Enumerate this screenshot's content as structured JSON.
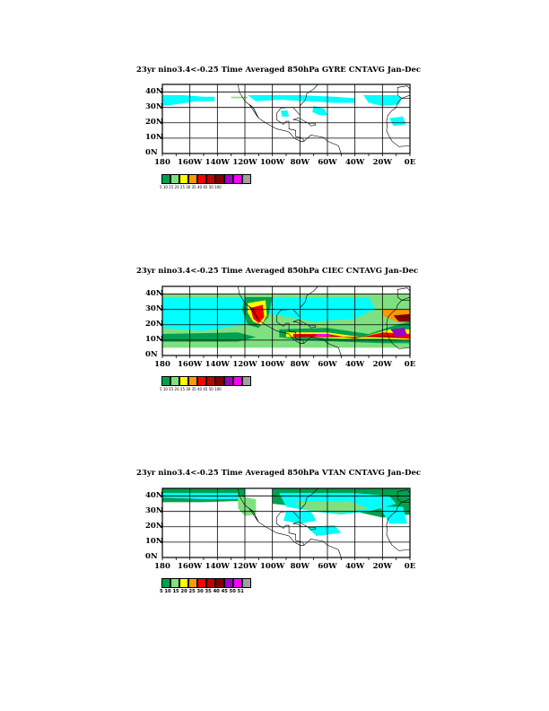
{
  "colors": {
    "cyan": "#00ffff",
    "lightgreen": "#7fe07f",
    "green": "#00a050",
    "yellow": "#ffff00",
    "orange": "#ff9900",
    "red": "#ff0000",
    "darkred": "#c00000",
    "maroon": "#800000",
    "magenta": "#ff00ff",
    "purple": "#a000c0",
    "gray": "#a0a0a0"
  },
  "lat_ticks": [
    "40N",
    "30N",
    "20N",
    "10N",
    "0N"
  ],
  "lon_ticks": [
    "180",
    "160W",
    "140W",
    "120W",
    "100W",
    "80W",
    "60W",
    "40W",
    "20W",
    "0E"
  ],
  "panels": [
    {
      "title": "23yr nino3.4<-0.25 Time Averaged 850hPa GYRE CNTAVG Jan-Dec",
      "legend_labels": "5   10   15   20   25   30   35   40   45   50  100",
      "legend_colors": [
        "#00a050",
        "#7fe07f",
        "#ffff00",
        "#ff9900",
        "#ff0000",
        "#c00000",
        "#800000",
        "#a000c0",
        "#ff00ff",
        "#a0a0a0"
      ]
    },
    {
      "title": "23yr nino3.4<-0.25 Time Averaged 850hPa CIEC CNTAVG Jan-Dec",
      "legend_labels": "5   10   15   20   25   30   35   40   45   50  100",
      "legend_colors": [
        "#00a050",
        "#7fe07f",
        "#ffff00",
        "#ff9900",
        "#ff0000",
        "#c00000",
        "#800000",
        "#a000c0",
        "#ff00ff",
        "#a0a0a0"
      ]
    },
    {
      "title": "23yr nino3.4<-0.25 Time Averaged 850hPa VTAN CNTAVG Jan-Dec",
      "legend_labels": "5 10 15 20 25 30 35 40 45 50 51",
      "legend_colors": [
        "#00a050",
        "#7fe07f",
        "#ffff00",
        "#ff9900",
        "#ff0000",
        "#c00000",
        "#800000",
        "#a000c0",
        "#ff00ff",
        "#a0a0a0"
      ]
    }
  ]
}
